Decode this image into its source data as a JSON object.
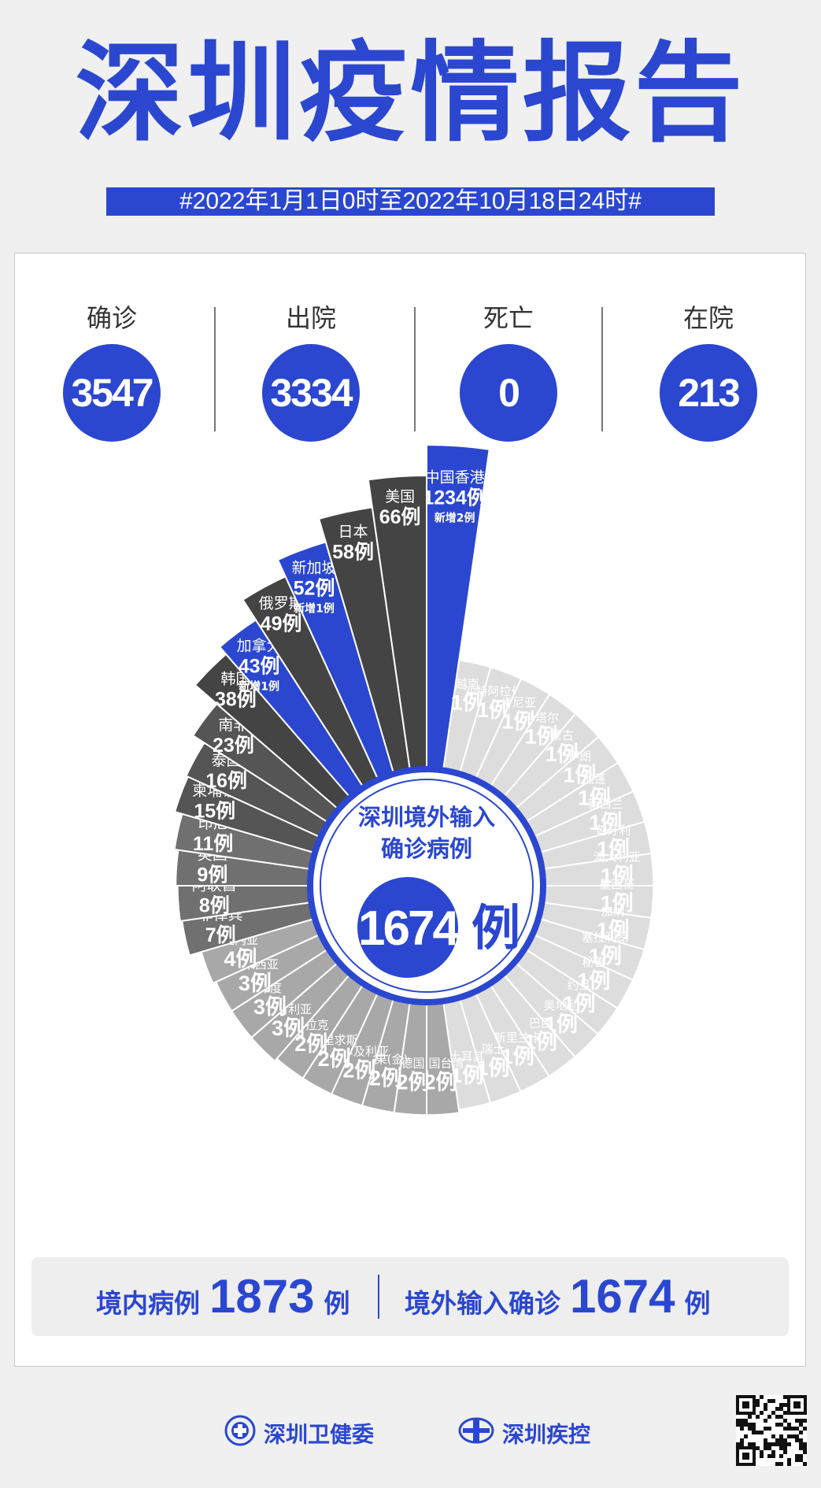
{
  "title": "深圳疫情报告",
  "period": "#2022年1月1日0时至2022年10月18日24时#",
  "stats": [
    {
      "label": "确诊",
      "value": "3547"
    },
    {
      "label": "出院",
      "value": "3334"
    },
    {
      "label": "死亡",
      "value": "0"
    },
    {
      "label": "在院",
      "value": "213"
    }
  ],
  "colors": {
    "accent": "#2b47d0",
    "dark": "#444444",
    "white": "#ffffff"
  },
  "center": {
    "line1": "深圳境外输入",
    "line2": "确诊病例",
    "value": "1674",
    "unit": "例"
  },
  "chart_data": {
    "type": "pie",
    "title": "深圳境外输入确诊病例",
    "total": 1674,
    "unit": "例",
    "categories": [
      "中国香港",
      "越南",
      "沙特阿拉伯",
      "肯尼亚",
      "卡塔尔",
      "蒙古",
      "伊朗",
      "加蓬",
      "新西兰",
      "匈牙利",
      "澳大利亚",
      "墨西哥",
      "加纳",
      "塞拉利昂",
      "秘鲁",
      "约旦",
      "奥地利",
      "巴西",
      "新里兰卡",
      "瑞士",
      "土耳其",
      "中国台湾",
      "德国",
      "刚果(金)",
      "阿尔及利亚",
      "毛里求斯",
      "伊拉克",
      "尼日利亚",
      "印度",
      "马来西亚",
      "几内亚",
      "菲律宾",
      "阿联酋",
      "英国",
      "印尼",
      "柬埔寨",
      "泰国",
      "南非",
      "韩国",
      "加拿大",
      "俄罗斯",
      "新加坡",
      "日本",
      "美国"
    ],
    "values": [
      1234,
      1,
      1,
      1,
      1,
      1,
      1,
      1,
      1,
      1,
      1,
      1,
      1,
      1,
      1,
      1,
      1,
      1,
      1,
      1,
      1,
      2,
      2,
      2,
      2,
      2,
      2,
      3,
      3,
      3,
      4,
      7,
      8,
      9,
      11,
      15,
      16,
      23,
      38,
      43,
      49,
      52,
      58,
      66
    ],
    "labels": [
      "1234例",
      "1例",
      "1例",
      "1例",
      "1例",
      "1例",
      "1例",
      "1例",
      "1例",
      "1例",
      "1例",
      "1例",
      "1例",
      "1例",
      "1例",
      "1例",
      "1例",
      "1例",
      "1例",
      "1例",
      "1例",
      "2例",
      "2例",
      "2例",
      "2例",
      "2例",
      "2例",
      "3例",
      "3例",
      "3例",
      "4例",
      "7例",
      "8例",
      "9例",
      "11例",
      "15例",
      "16例",
      "23例",
      "38例",
      "43例",
      "49例",
      "52例",
      "58例",
      "66例"
    ],
    "notes": [
      "新增2例",
      "",
      "",
      "",
      "",
      "",
      "",
      "",
      "",
      "",
      "",
      "",
      "",
      "",
      "",
      "",
      "",
      "",
      "",
      "",
      "",
      "",
      "",
      "",
      "",
      "",
      "",
      "",
      "",
      "",
      "",
      "",
      "",
      "",
      "",
      "",
      "",
      "",
      "",
      "新增1例",
      "",
      "新增1例",
      "",
      ""
    ],
    "highlight": [
      "中国香港",
      "新加坡",
      "加拿大"
    ]
  },
  "summary": {
    "domestic_label": "境内病例",
    "domestic_value": "1873",
    "domestic_unit": "例",
    "imported_label": "境外输入确诊",
    "imported_value": "1674",
    "imported_unit": "例"
  },
  "footer": {
    "org1": "深圳卫健委",
    "org2": "深圳疾控"
  }
}
